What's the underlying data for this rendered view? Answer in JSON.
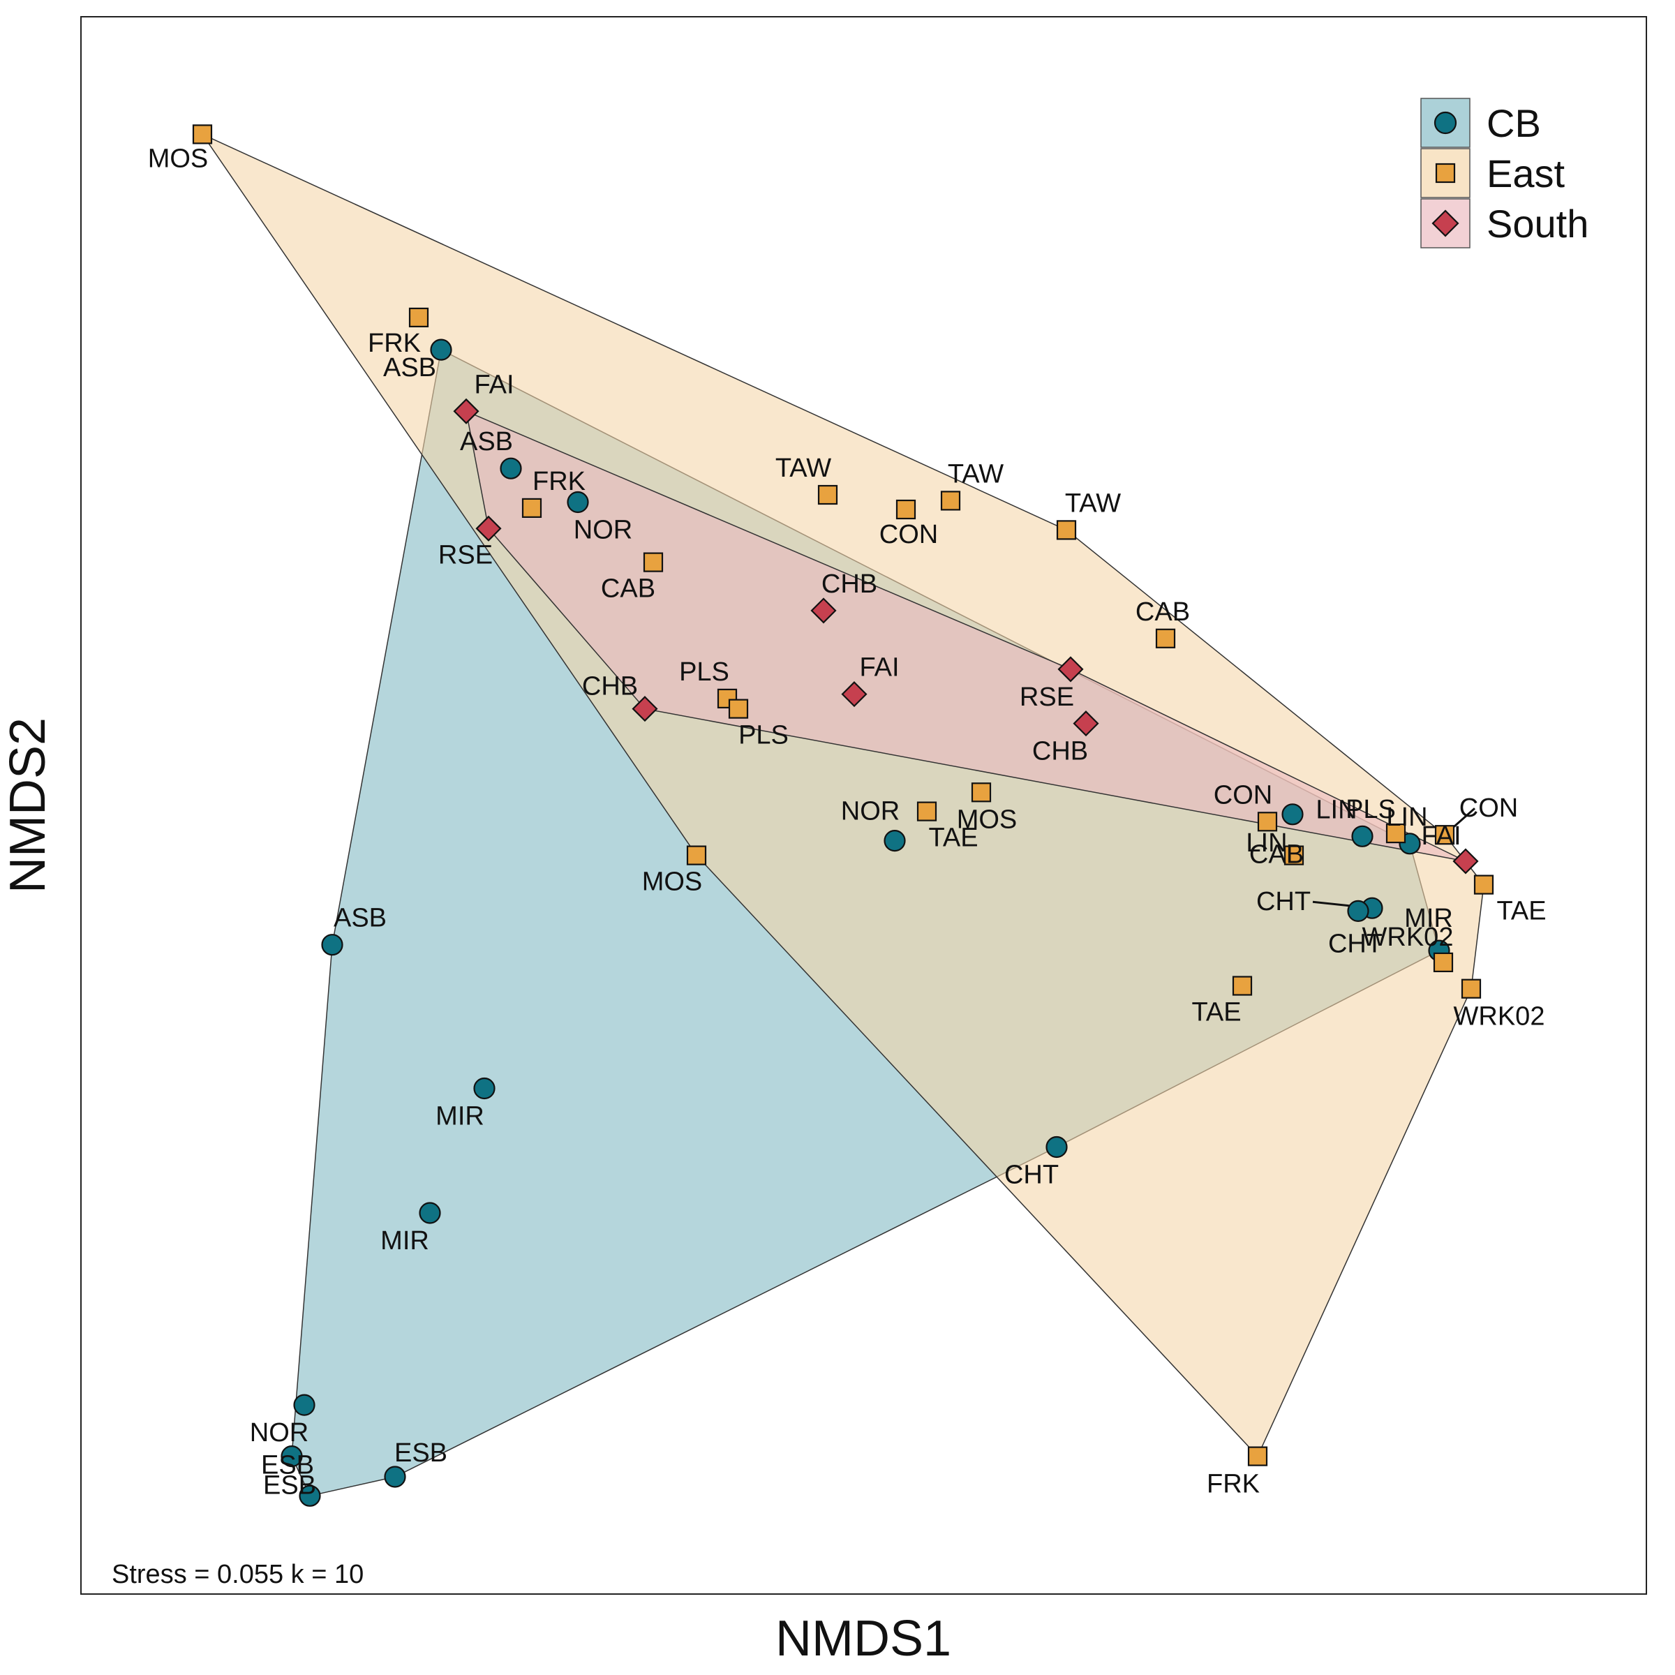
{
  "chart_data": {
    "type": "scatter",
    "title": "",
    "xlabel": "NMDS1",
    "ylabel": "NMDS2",
    "annotation": "Stress = 0.055 k = 10",
    "xlim": [
      0,
      100
    ],
    "ylim": [
      0,
      100
    ],
    "grid": false,
    "ticks": false,
    "legend_position": "top-right",
    "hulls": true,
    "series": [
      {
        "name": "CB",
        "marker": "circle",
        "color": "#0f7283",
        "fill": "#7fb8c3",
        "points": [
          {
            "label": "ASB",
            "x": 21.6,
            "y": 80.9
          },
          {
            "label": "ASB",
            "x": 26.6,
            "y": 72.8
          },
          {
            "label": "ASB",
            "x": 13.8,
            "y": 40.3
          },
          {
            "label": "NOR",
            "x": 31.4,
            "y": 70.5
          },
          {
            "label": "NOR",
            "x": 54.1,
            "y": 47.4
          },
          {
            "label": "NOR",
            "x": 11.8,
            "y": 8.9
          },
          {
            "label": "MIR",
            "x": 24.7,
            "y": 30.5
          },
          {
            "label": "MIR",
            "x": 20.8,
            "y": 22.0
          },
          {
            "label": "MIR",
            "x": 93.1,
            "y": 39.9
          },
          {
            "label": "ESB",
            "x": 12.2,
            "y": 2.7
          },
          {
            "label": "ESB",
            "x": 18.3,
            "y": 4.0
          },
          {
            "label": "ESB",
            "x": 10.9,
            "y": 5.4
          },
          {
            "label": "CHT",
            "x": 65.7,
            "y": 26.5
          },
          {
            "label": "CHT",
            "x": 88.3,
            "y": 42.8
          },
          {
            "label": "CHT",
            "x": 87.3,
            "y": 42.6
          },
          {
            "label": "LIN",
            "x": 82.6,
            "y": 49.2
          },
          {
            "label": "LIN",
            "x": 87.6,
            "y": 47.7
          },
          {
            "label": "LIN",
            "x": 91.0,
            "y": 47.2
          }
        ]
      },
      {
        "name": "East",
        "marker": "square",
        "color": "#e8a23f",
        "fill": "#f4d6a8",
        "points": [
          {
            "label": "MOS",
            "x": 4.5,
            "y": 95.6
          },
          {
            "label": "MOS",
            "x": 39.9,
            "y": 46.4
          },
          {
            "label": "MOS",
            "x": 60.3,
            "y": 50.7
          },
          {
            "label": "FRK",
            "x": 20.0,
            "y": 83.1
          },
          {
            "label": "FRK",
            "x": 28.1,
            "y": 70.1
          },
          {
            "label": "FRK",
            "x": 80.1,
            "y": 5.4
          },
          {
            "label": "TAW",
            "x": 49.3,
            "y": 71.0
          },
          {
            "label": "TAW",
            "x": 58.1,
            "y": 70.6
          },
          {
            "label": "TAW",
            "x": 66.4,
            "y": 68.6
          },
          {
            "label": "CON",
            "x": 54.9,
            "y": 70.0
          },
          {
            "label": "CON",
            "x": 80.8,
            "y": 48.7
          },
          {
            "label": "CON",
            "x": 93.5,
            "y": 47.8
          },
          {
            "label": "CAB",
            "x": 36.8,
            "y": 66.4
          },
          {
            "label": "CAB",
            "x": 73.5,
            "y": 61.2
          },
          {
            "label": "CAB",
            "x": 82.7,
            "y": 46.4
          },
          {
            "label": "PLS",
            "x": 42.1,
            "y": 57.1
          },
          {
            "label": "PLS",
            "x": 42.9,
            "y": 56.4
          },
          {
            "label": "PLS",
            "x": 90.0,
            "y": 47.9
          },
          {
            "label": "TAE",
            "x": 56.4,
            "y": 49.4
          },
          {
            "label": "TAE",
            "x": 79.0,
            "y": 37.5
          },
          {
            "label": "TAE",
            "x": 96.3,
            "y": 44.4
          },
          {
            "label": "WRK02",
            "x": 93.4,
            "y": 39.1
          },
          {
            "label": "WRK02",
            "x": 95.4,
            "y": 37.3
          }
        ]
      },
      {
        "name": "South",
        "marker": "diamond",
        "color": "#c6404f",
        "fill": "#ebb8bf",
        "points": [
          {
            "label": "FAI",
            "x": 23.4,
            "y": 76.7
          },
          {
            "label": "FAI",
            "x": 51.2,
            "y": 57.4
          },
          {
            "label": "FAI",
            "x": 95.0,
            "y": 46.0
          },
          {
            "label": "RSE",
            "x": 25.0,
            "y": 68.7
          },
          {
            "label": "RSE",
            "x": 66.7,
            "y": 59.1
          },
          {
            "label": "CHB",
            "x": 36.2,
            "y": 56.4
          },
          {
            "label": "CHB",
            "x": 49.0,
            "y": 63.1
          },
          {
            "label": "CHB",
            "x": 67.8,
            "y": 55.4
          }
        ]
      }
    ]
  }
}
